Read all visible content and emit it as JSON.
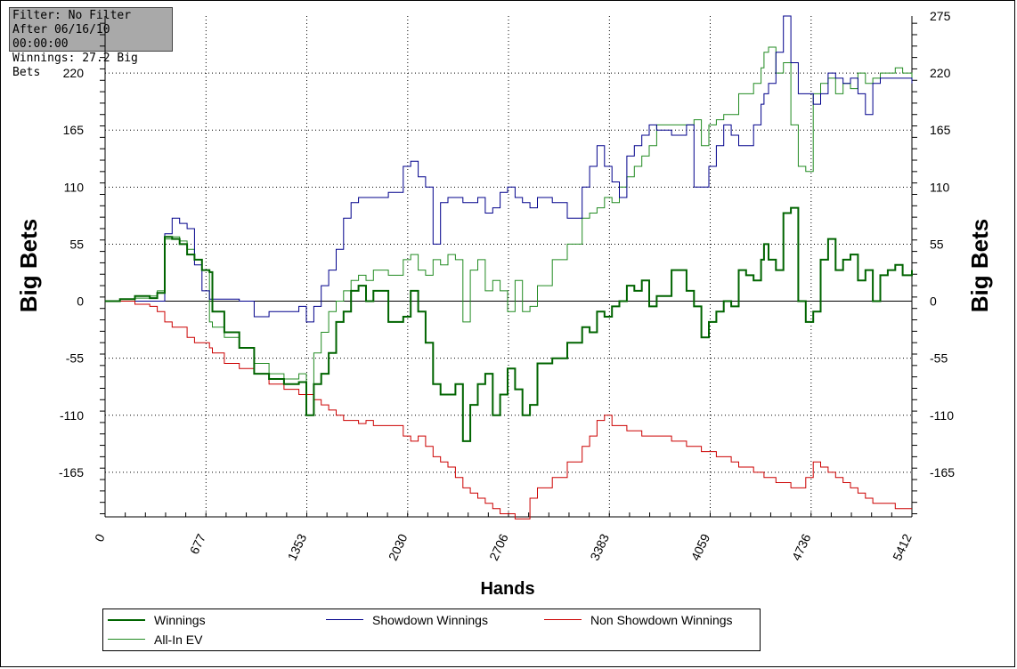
{
  "info_box": {
    "filter": "Filter: No Filter",
    "after": "After 06/16/10 00:00:00",
    "winnings": "Winnings: 27.2 Big Bets"
  },
  "chart_data": {
    "type": "line",
    "xlabel": "Hands",
    "ylabel": "Big Bets",
    "xlim": [
      0,
      5412
    ],
    "ylim": [
      -208,
      275
    ],
    "x_ticks": [
      "0",
      "677",
      "1353",
      "2030",
      "2706",
      "3383",
      "4059",
      "4736",
      "5412"
    ],
    "y_ticks_left": [
      "220",
      "165",
      "110",
      "55",
      "0",
      "-55",
      "-110",
      "-165"
    ],
    "y_ticks_right": [
      "275",
      "220",
      "165",
      "110",
      "55",
      "0",
      "-55",
      "-110",
      "-165"
    ],
    "grid": true,
    "legend_position": "bottom",
    "x": [
      0,
      100,
      200,
      300,
      350,
      400,
      450,
      500,
      550,
      600,
      650,
      700,
      720,
      800,
      900,
      1000,
      1100,
      1200,
      1300,
      1350,
      1400,
      1450,
      1500,
      1550,
      1600,
      1650,
      1700,
      1750,
      1800,
      1900,
      2000,
      2050,
      2100,
      2150,
      2200,
      2250,
      2300,
      2350,
      2400,
      2450,
      2500,
      2550,
      2600,
      2650,
      2700,
      2750,
      2800,
      2850,
      2900,
      3000,
      3100,
      3200,
      3250,
      3300,
      3350,
      3400,
      3450,
      3500,
      3550,
      3600,
      3650,
      3700,
      3800,
      3900,
      3950,
      4000,
      4050,
      4100,
      4150,
      4200,
      4250,
      4300,
      4350,
      4400,
      4420,
      4450,
      4500,
      4550,
      4600,
      4650,
      4700,
      4750,
      4800,
      4850,
      4900,
      4950,
      5000,
      5050,
      5100,
      5150,
      5200,
      5250,
      5300,
      5350,
      5412
    ],
    "series": [
      {
        "name": "Winnings",
        "color": "#006400",
        "width": 2,
        "values": [
          0,
          2,
          5,
          3,
          8,
          62,
          60,
          55,
          45,
          40,
          30,
          28,
          -10,
          -30,
          -45,
          -70,
          -75,
          -80,
          -78,
          -110,
          -80,
          -70,
          -50,
          -20,
          -10,
          10,
          15,
          0,
          10,
          -20,
          -15,
          10,
          -10,
          -40,
          -80,
          -90,
          -90,
          -80,
          -135,
          -100,
          -80,
          -70,
          -110,
          -90,
          -65,
          -85,
          -110,
          -100,
          -60,
          -55,
          -40,
          -25,
          -30,
          -10,
          -15,
          -5,
          0,
          15,
          10,
          20,
          -5,
          5,
          30,
          10,
          -5,
          -35,
          -20,
          -10,
          0,
          -5,
          30,
          25,
          20,
          40,
          55,
          40,
          30,
          85,
          90,
          0,
          -20,
          -10,
          40,
          60,
          30,
          40,
          45,
          20,
          30,
          0,
          25,
          30,
          35,
          25,
          30
        ]
      },
      {
        "name": "Showdown Winnings",
        "color": "#00008b",
        "width": 1,
        "values": [
          0,
          0,
          0,
          0,
          0,
          65,
          80,
          75,
          70,
          35,
          10,
          2,
          2,
          2,
          0,
          -15,
          -10,
          -10,
          -5,
          -20,
          -5,
          15,
          30,
          50,
          80,
          95,
          100,
          100,
          100,
          105,
          130,
          135,
          120,
          110,
          55,
          95,
          100,
          100,
          95,
          95,
          100,
          85,
          90,
          105,
          110,
          100,
          95,
          90,
          100,
          95,
          80,
          110,
          130,
          150,
          130,
          115,
          100,
          140,
          150,
          160,
          170,
          165,
          160,
          170,
          110,
          110,
          130,
          150,
          170,
          160,
          150,
          150,
          170,
          190,
          200,
          210,
          240,
          275,
          230,
          200,
          200,
          190,
          200,
          220,
          215,
          210,
          215,
          200,
          180,
          210,
          215,
          215,
          215,
          215,
          210
        ]
      },
      {
        "name": "Non Showdown Winnings",
        "color": "#cc0000",
        "width": 1,
        "values": [
          0,
          0,
          -3,
          -5,
          -10,
          -20,
          -25,
          -25,
          -35,
          -40,
          -40,
          -45,
          -50,
          -60,
          -65,
          -70,
          -80,
          -85,
          -90,
          -90,
          -95,
          -100,
          -105,
          -110,
          -115,
          -115,
          -118,
          -115,
          -120,
          -120,
          -130,
          -135,
          -130,
          -140,
          -150,
          -155,
          -160,
          -170,
          -180,
          -185,
          -190,
          -195,
          -200,
          -205,
          -205,
          -210,
          -210,
          -190,
          -180,
          -170,
          -155,
          -140,
          -130,
          -115,
          -110,
          -120,
          -120,
          -125,
          -125,
          -130,
          -130,
          -130,
          -135,
          -140,
          -140,
          -145,
          -145,
          -150,
          -150,
          -155,
          -160,
          -160,
          -165,
          -165,
          -170,
          -170,
          -175,
          -175,
          -180,
          -180,
          -170,
          -155,
          -160,
          -165,
          -170,
          -175,
          -180,
          -185,
          -190,
          -195,
          -195,
          -195,
          -200,
          -200,
          -200
        ]
      },
      {
        "name": "All-In EV",
        "color": "#228b22",
        "width": 1,
        "values": [
          0,
          0,
          3,
          5,
          10,
          60,
          62,
          58,
          50,
          40,
          30,
          -20,
          -25,
          -35,
          -45,
          -60,
          -70,
          -75,
          -70,
          -90,
          -50,
          -30,
          -10,
          0,
          10,
          20,
          25,
          20,
          30,
          25,
          40,
          45,
          30,
          25,
          40,
          35,
          45,
          40,
          -20,
          30,
          40,
          10,
          20,
          10,
          -10,
          20,
          -10,
          -5,
          15,
          40,
          55,
          80,
          85,
          90,
          100,
          95,
          110,
          120,
          130,
          140,
          150,
          170,
          170,
          170,
          175,
          150,
          170,
          175,
          180,
          180,
          200,
          200,
          210,
          225,
          240,
          245,
          220,
          230,
          170,
          130,
          125,
          200,
          210,
          215,
          200,
          210,
          205,
          220,
          210,
          215,
          220,
          220,
          225,
          220,
          215
        ]
      }
    ]
  },
  "legend": {
    "winnings": "Winnings",
    "showdown": "Showdown Winnings",
    "non_showdown": "Non Showdown Winnings",
    "allin_ev": "All-In EV"
  }
}
